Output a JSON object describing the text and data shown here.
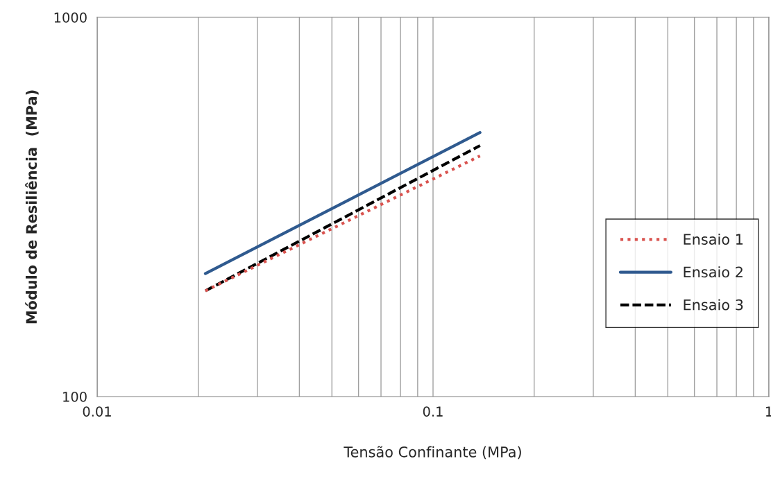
{
  "chart_data": {
    "type": "line",
    "xlabel": "Tensão Confinante (MPa)",
    "ylabel": "Módulo de Resiliência  (MPa)",
    "log": "xy",
    "grid": "x",
    "legend": "right",
    "xlim": [
      0.01,
      1
    ],
    "ylim": [
      100,
      1000
    ],
    "xticks": [
      0.01,
      {
        "value": 0.02,
        "label": null
      },
      {
        "value": 0.03,
        "label": null
      },
      {
        "value": 0.04,
        "label": null
      },
      {
        "value": 0.05,
        "label": null
      },
      {
        "value": 0.06,
        "label": null
      },
      {
        "value": 0.07,
        "label": null
      },
      {
        "value": 0.08,
        "label": null
      },
      {
        "value": 0.09,
        "label": null
      },
      0.1,
      {
        "value": 0.2,
        "label": null
      },
      {
        "value": 0.3,
        "label": null
      },
      {
        "value": 0.4,
        "label": null
      },
      {
        "value": 0.5,
        "label": null
      },
      {
        "value": 0.6,
        "label": null
      },
      {
        "value": 0.7,
        "label": null
      },
      {
        "value": 0.8,
        "label": null
      },
      {
        "value": 0.9,
        "label": null
      },
      1
    ],
    "yticks": [
      100,
      1000
    ],
    "x": [
      0.021,
      0.138
    ],
    "series": [
      {
        "name": "Ensaio 1",
        "color": "#d9534f",
        "line_style": "dotted",
        "values": [
          190,
          431
        ]
      },
      {
        "name": "Ensaio 2",
        "color": "#2f5a8f",
        "line_style": "solid",
        "values": [
          211,
          497
        ]
      },
      {
        "name": "Ensaio 3",
        "color": "#000000",
        "line_style": "dashed",
        "values": [
          190,
          459
        ]
      }
    ]
  }
}
